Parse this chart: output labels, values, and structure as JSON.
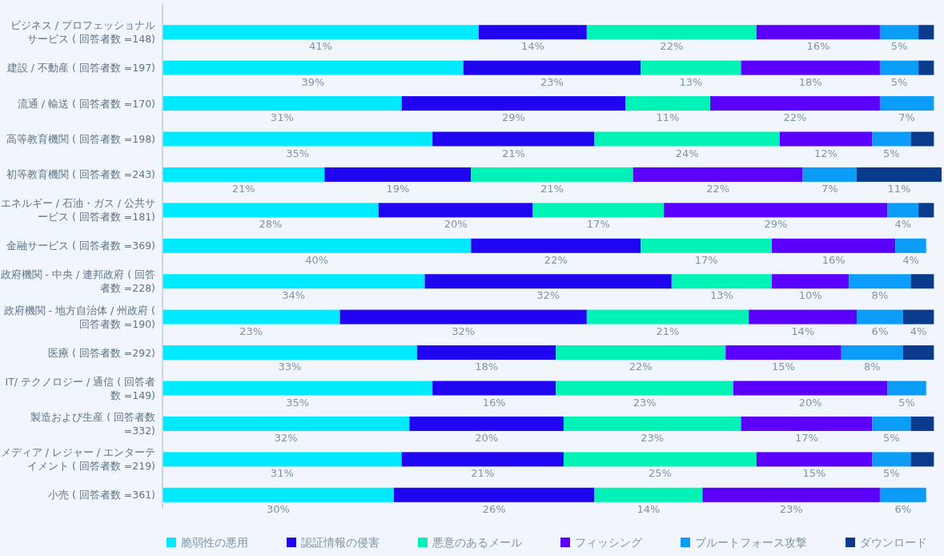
{
  "chart_data": {
    "type": "bar",
    "orientation": "horizontal",
    "stacked": true,
    "legend": "bottom",
    "tick_labels": "y",
    "categories": [
      "ビジネス / プロフェッショナルサービス ( 回答者数 =148)",
      "建設 / 不動産 ( 回答者数 =197)",
      "流通 / 輸送 ( 回答者数 =170)",
      "高等教育機関 ( 回答者数 =198)",
      "初等教育機関 ( 回答者数 =243)",
      "エネルギー / 石油・ガス / 公共サービス ( 回答者数 =181)",
      "金融サービス ( 回答者数 =369)",
      "政府機関 - 中央 / 連邦政府 ( 回答者数 =228)",
      "政府機関 - 地方自治体 / 州政府 ( 回答者数 =190)",
      "医療 ( 回答者数 =292)",
      "IT/ テクノロジー / 通信 ( 回答者数 =149)",
      "製造および生産 ( 回答者数 =332)",
      "メディア / レジャー / エンターテイメント ( 回答者数 =219)",
      "小売 ( 回答者数 =361)"
    ],
    "series": [
      {
        "name": "脆弱性の悪用",
        "color": "#00eaff",
        "values": [
          41,
          39,
          31,
          35,
          21,
          28,
          40,
          34,
          23,
          33,
          35,
          32,
          31,
          30
        ],
        "value_labels": [
          "41%",
          "39%",
          "31%",
          "35%",
          "21%",
          "28%",
          "40%",
          "34%",
          "23%",
          "33%",
          "35%",
          "32%",
          "31%",
          "30%"
        ]
      },
      {
        "name": "認証情報の侵害",
        "color": "#2006f0",
        "values": [
          14,
          23,
          29,
          21,
          19,
          20,
          22,
          32,
          32,
          18,
          16,
          20,
          21,
          26
        ],
        "value_labels": [
          "14%",
          "23%",
          "29%",
          "21%",
          "19%",
          "20%",
          "22%",
          "32%",
          "32%",
          "18%",
          "16%",
          "20%",
          "21%",
          "26%"
        ]
      },
      {
        "name": "悪意のあるメール",
        "color": "#00f2b6",
        "values": [
          22,
          13,
          11,
          24,
          21,
          17,
          17,
          13,
          21,
          22,
          23,
          23,
          25,
          14
        ],
        "value_labels": [
          "22%",
          "13%",
          "11%",
          "24%",
          "21%",
          "17%",
          "17%",
          "13%",
          "21%",
          "22%",
          "23%",
          "23%",
          "25%",
          "14%"
        ]
      },
      {
        "name": "フィッシング",
        "color": "#5b00ff",
        "values": [
          16,
          18,
          22,
          12,
          22,
          29,
          16,
          10,
          14,
          15,
          20,
          17,
          15,
          23
        ],
        "value_labels": [
          "16%",
          "18%",
          "22%",
          "12%",
          "22%",
          "29%",
          "16%",
          "10%",
          "14%",
          "15%",
          "20%",
          "17%",
          "15%",
          "23%"
        ]
      },
      {
        "name": "ブルートフォース攻撃",
        "color": "#0a9cf6",
        "values": [
          5,
          5,
          7,
          5,
          7,
          4,
          4,
          8,
          6,
          8,
          5,
          5,
          5,
          6
        ],
        "value_labels": [
          "5%",
          "5%",
          "7%",
          "5%",
          "7%",
          "4%",
          "4%",
          "8%",
          "6%",
          "8%",
          "5%",
          "5%",
          "5%",
          "6%"
        ]
      },
      {
        "name": "ダウンロード",
        "color": "#0a3a8c",
        "values": [
          2,
          2,
          null,
          3,
          11,
          2,
          null,
          3,
          4,
          4,
          null,
          3,
          3,
          null
        ],
        "value_labels": [
          null,
          null,
          null,
          null,
          "11%",
          null,
          null,
          null,
          "4%",
          null,
          null,
          null,
          null,
          null
        ]
      }
    ]
  }
}
